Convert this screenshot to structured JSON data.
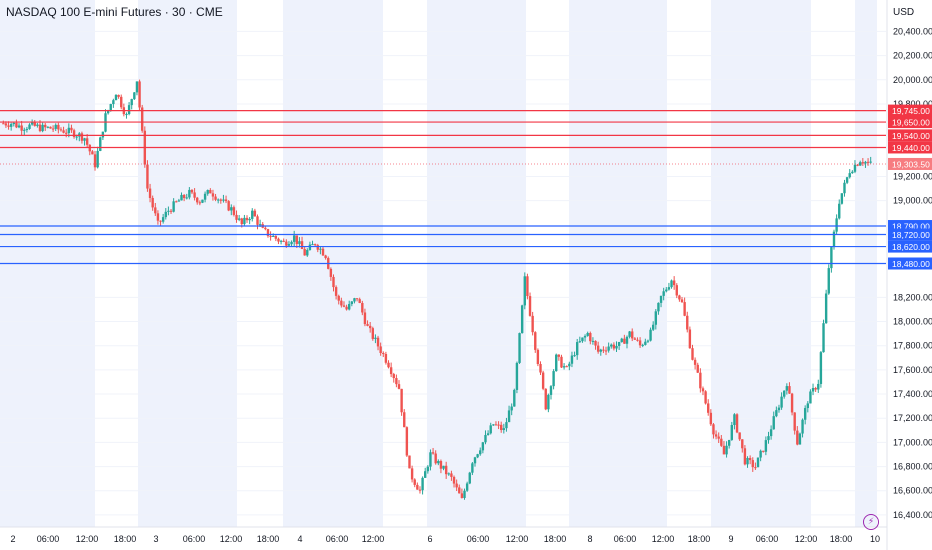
{
  "header": {
    "title": "NASDAQ 100 E-mini Futures · 30 · CME",
    "currency": "USD"
  },
  "chart_data": {
    "type": "candlestick",
    "title": "NASDAQ 100 E-mini Futures · 30 · CME",
    "y_axis": {
      "ticks": [
        "20,400.00",
        "20,200.00",
        "20,000.00",
        "19,800.00",
        "19,200.00",
        "19,000.00",
        "18,200.00",
        "18,000.00",
        "17,800.00",
        "17,600.00",
        "17,400.00",
        "17,200.00",
        "17,000.00",
        "16,800.00",
        "16,600.00",
        "16,400.00"
      ],
      "min": 16300,
      "max": 20660
    },
    "x_axis": {
      "ticks": [
        "2",
        "06:00",
        "12:00",
        "18:00",
        "3",
        "06:00",
        "12:00",
        "18:00",
        "4",
        "06:00",
        "12:00",
        "6",
        "06:00",
        "12:00",
        "18:00",
        "8",
        "06:00",
        "12:00",
        "18:00",
        "9",
        "06:00",
        "12:00",
        "18:00",
        "10"
      ]
    },
    "resistance_levels": [
      {
        "value": 19745,
        "label": "19,745.00"
      },
      {
        "value": 19650,
        "label": "19,650.00"
      },
      {
        "value": 19540,
        "label": "19,540.00"
      },
      {
        "value": 19440,
        "label": "19,440.00"
      }
    ],
    "support_levels": [
      {
        "value": 18790,
        "label": "18,790.00"
      },
      {
        "value": 18720,
        "label": "18,720.00"
      },
      {
        "value": 18620,
        "label": "18,620.00"
      },
      {
        "value": 18480,
        "label": "18,480.00"
      }
    ],
    "last_price": {
      "value": 19303.5,
      "label": "19,303.50"
    },
    "price_path": [
      19640,
      19640,
      19610,
      19620,
      19600,
      19600,
      19580,
      19560,
      19520,
      19300,
      19700,
      19900,
      19700,
      20000,
      19100,
      18800,
      18920,
      19000,
      19060,
      19000,
      19080,
      19000,
      18930,
      18800,
      18900,
      18750,
      18700,
      18650,
      18700,
      18560,
      18650,
      18550,
      18200,
      18100,
      18200,
      17950,
      17800,
      17650,
      17450,
      16750,
      16600,
      16900,
      16800,
      16700,
      16520,
      16850,
      17000,
      17150,
      17100,
      17400,
      18350,
      17800,
      17300,
      17700,
      17600,
      17800,
      17900,
      17750,
      17800,
      17800,
      17900,
      17800,
      17900,
      18200,
      18350,
      18150,
      17700,
      17400,
      17100,
      16900,
      17200,
      16850,
      16800,
      17000,
      17250,
      17500,
      17000,
      17350,
      17500,
      18450,
      19000,
      19250,
      19340,
      19300
    ]
  }
}
